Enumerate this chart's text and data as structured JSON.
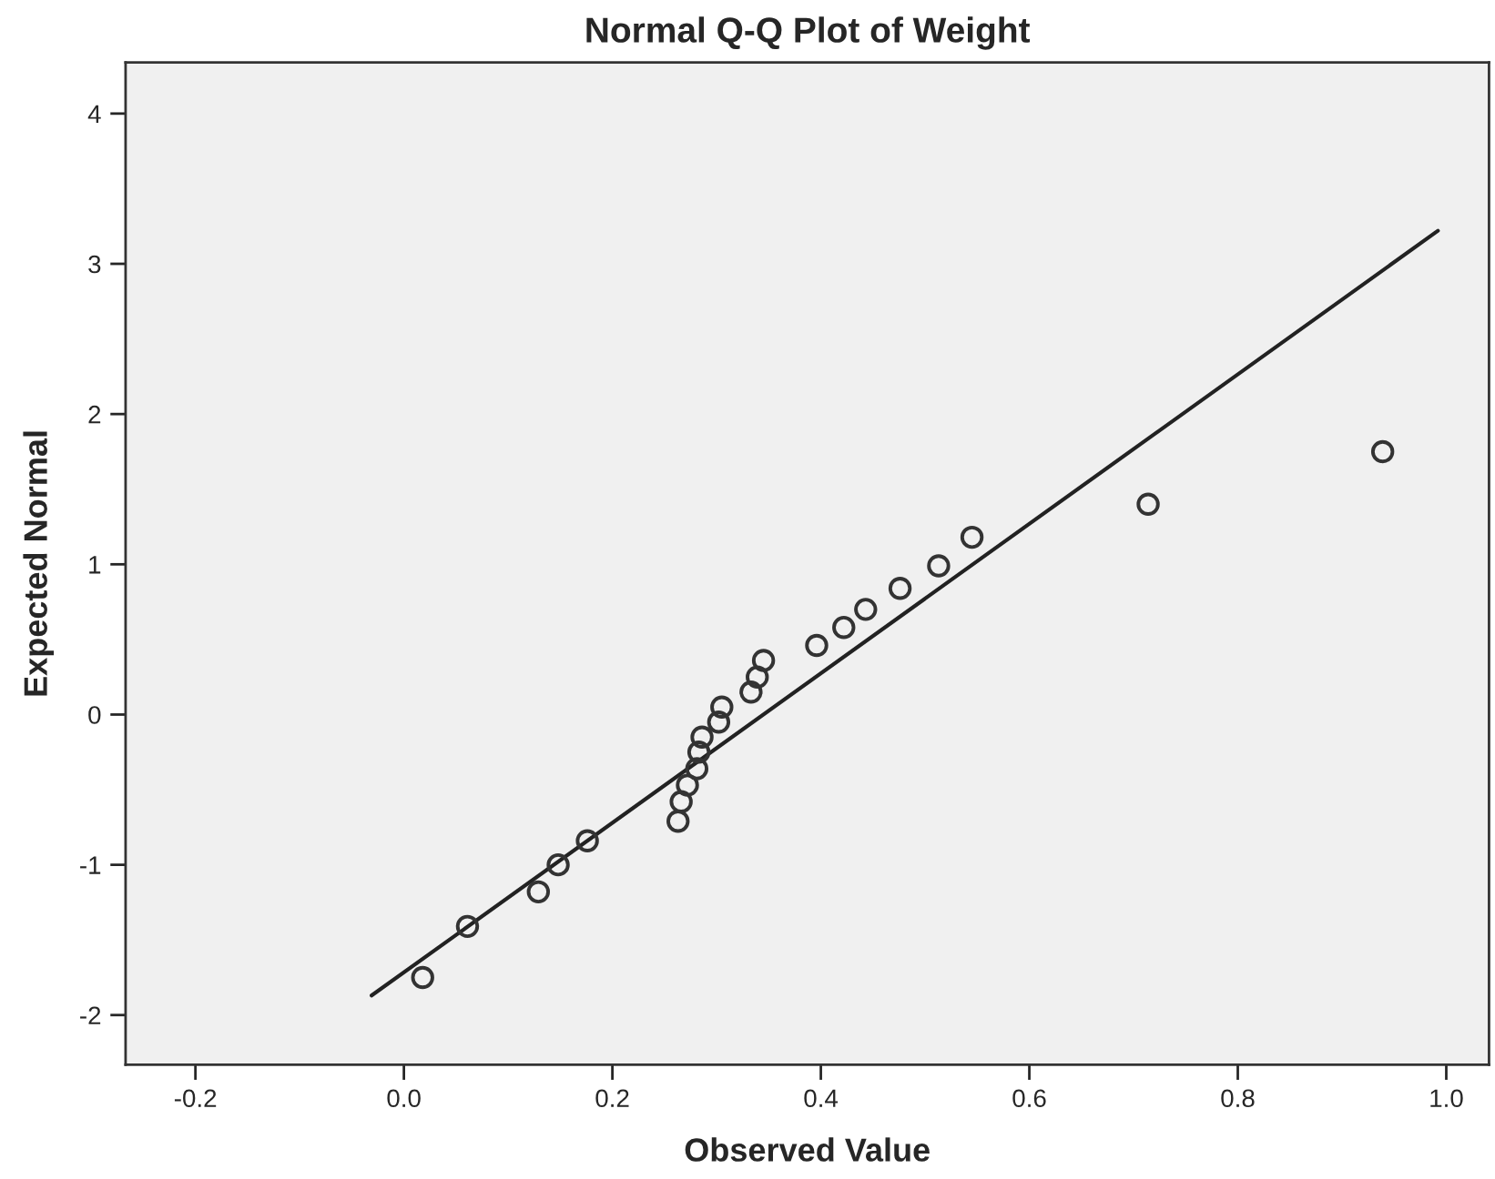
{
  "chart_data": {
    "type": "scatter",
    "title": "Normal Q-Q Plot of Weight",
    "xlabel": "Observed Value",
    "ylabel": "Expected Normal",
    "xlim": [
      -0.267,
      1.041
    ],
    "ylim": [
      -2.33,
      4.34
    ],
    "xticks": [
      {
        "value": -0.2,
        "label": "-0.2"
      },
      {
        "value": 0.0,
        "label": "0.0"
      },
      {
        "value": 0.2,
        "label": "0.2"
      },
      {
        "value": 0.4,
        "label": "0.4"
      },
      {
        "value": 0.6,
        "label": "0.6"
      },
      {
        "value": 0.8,
        "label": "0.8"
      },
      {
        "value": 1.0,
        "label": "1.0"
      }
    ],
    "yticks": [
      -2,
      -1,
      0,
      1,
      2,
      3,
      4
    ],
    "grid": false,
    "series": [
      {
        "marker": "circle",
        "color": "#333333",
        "x": [
          0.018,
          0.061,
          0.129,
          0.148,
          0.176,
          0.263,
          0.266,
          0.272,
          0.281,
          0.283,
          0.286,
          0.302,
          0.305,
          0.333,
          0.339,
          0.345,
          0.396,
          0.422,
          0.443,
          0.476,
          0.513,
          0.545,
          0.714,
          0.939
        ],
        "values": [
          -1.75,
          -1.41,
          -1.18,
          -1.0,
          -0.84,
          -0.71,
          -0.58,
          -0.47,
          -0.36,
          -0.25,
          -0.15,
          -0.05,
          0.05,
          0.15,
          0.25,
          0.36,
          0.46,
          0.58,
          0.7,
          0.84,
          0.99,
          1.18,
          1.4,
          1.75
        ]
      },
      {
        "type": "line",
        "marker": "none",
        "color": "#222222",
        "x": [
          -0.031,
          0.992
        ],
        "values": [
          -1.87,
          3.22
        ]
      }
    ]
  }
}
